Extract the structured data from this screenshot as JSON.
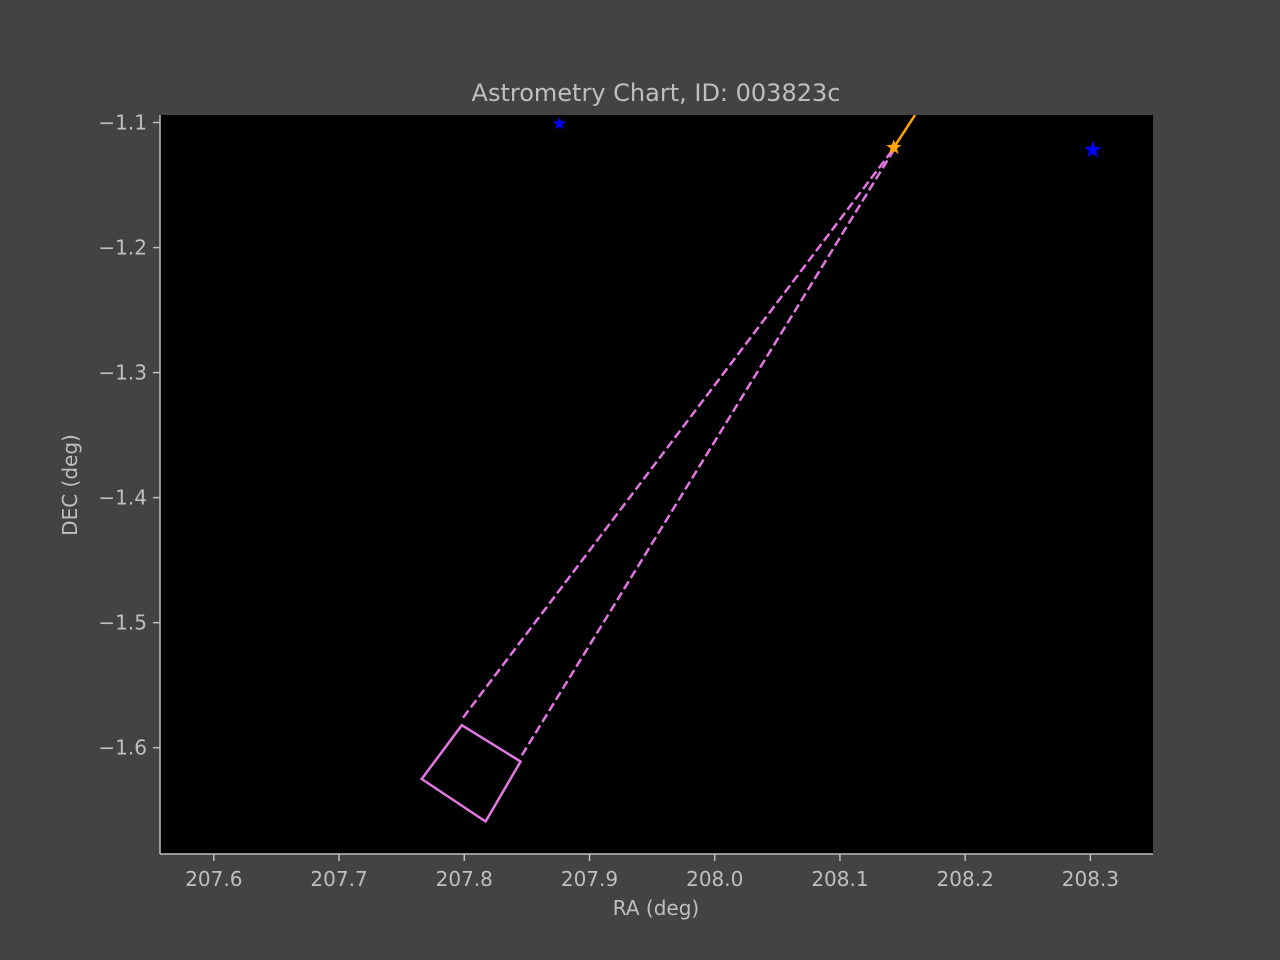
{
  "chart_data": {
    "type": "scatter",
    "title": "Astrometry Chart, ID: 003823c",
    "xlabel": "RA (deg)",
    "ylabel": "DEC (deg)",
    "xlim": [
      207.557,
      208.35
    ],
    "ylim": [
      -1.685,
      -1.094
    ],
    "x_ticks": [
      "207.6",
      "207.7",
      "207.8",
      "207.9",
      "208.0",
      "208.1",
      "208.2",
      "208.3"
    ],
    "y_ticks": [
      "−1.1",
      "−1.2",
      "−1.3",
      "−1.4",
      "−1.5",
      "−1.6"
    ],
    "grid": false,
    "colors": {
      "figure_bg": "#434343",
      "plot_bg": "#000000",
      "axis_text": "#bfbfbf",
      "spine": "#bfbfbf",
      "stars": "#0000ff",
      "track": "#ffa500",
      "field": "#e377e2"
    },
    "stars": [
      {
        "x": 207.876,
        "y": -1.101,
        "size": "small"
      },
      {
        "x": 208.302,
        "y": -1.122,
        "size": "large"
      }
    ],
    "track": {
      "points": [
        {
          "x": 208.143,
          "y": -1.12
        },
        {
          "x": 208.16,
          "y": -1.094
        }
      ],
      "marker": {
        "x": 208.143,
        "y": -1.12
      }
    },
    "field_box": [
      {
        "x": 207.798,
        "y": -1.582
      },
      {
        "x": 207.845,
        "y": -1.611
      },
      {
        "x": 207.817,
        "y": -1.659
      },
      {
        "x": 207.766,
        "y": -1.625
      }
    ],
    "connectors": [
      {
        "from": {
          "x": 207.799,
          "y": -1.576
        },
        "to": {
          "x": 208.142,
          "y": -1.122
        }
      },
      {
        "from": {
          "x": 207.846,
          "y": -1.606
        },
        "to": {
          "x": 208.143,
          "y": -1.122
        }
      }
    ]
  }
}
